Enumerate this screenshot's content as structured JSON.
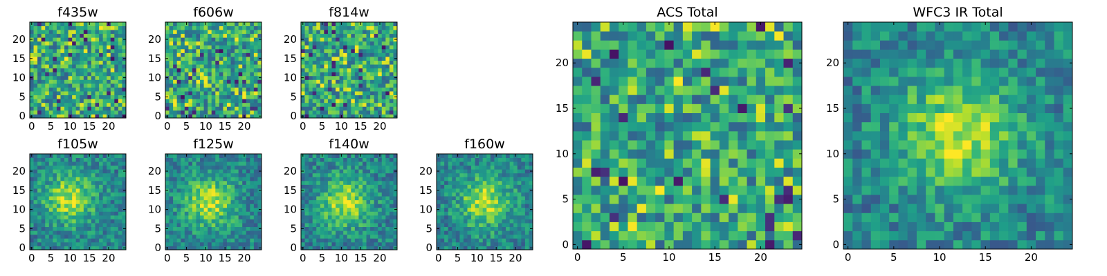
{
  "chart_data": [
    {
      "type": "heatmap",
      "title": "f435w",
      "size": 25,
      "colormap": "viridis",
      "pattern": "noise",
      "seed": 11,
      "xticks": [
        0,
        5,
        10,
        15,
        20
      ],
      "yticks": [
        0,
        5,
        10,
        15,
        20
      ],
      "xtick_labels": [
        "0",
        "5",
        "10",
        "15",
        "20"
      ],
      "ytick_labels": [
        "0",
        "5",
        "10",
        "15",
        "20"
      ]
    },
    {
      "type": "heatmap",
      "title": "f606w",
      "size": 25,
      "colormap": "viridis",
      "pattern": "noise",
      "seed": 23,
      "xticks": [
        0,
        5,
        10,
        15,
        20
      ],
      "yticks": [
        0,
        5,
        10,
        15,
        20
      ],
      "xtick_labels": [
        "0",
        "5",
        "10",
        "15",
        "20"
      ],
      "ytick_labels": [
        "0",
        "5",
        "10",
        "15",
        "20"
      ]
    },
    {
      "type": "heatmap",
      "title": "f814w",
      "size": 25,
      "colormap": "viridis",
      "pattern": "noise",
      "seed": 37,
      "xticks": [
        0,
        5,
        10,
        15,
        20
      ],
      "yticks": [
        0,
        5,
        10,
        15,
        20
      ],
      "xtick_labels": [
        "0",
        "5",
        "10",
        "15",
        "20"
      ],
      "ytick_labels": [
        "0",
        "5",
        "10",
        "15",
        "20"
      ]
    },
    {
      "type": "heatmap",
      "title": "f105w",
      "size": 25,
      "colormap": "viridis",
      "pattern": "blob",
      "seed": 41,
      "blob_center": [
        10,
        13
      ],
      "xticks": [
        0,
        5,
        10,
        15,
        20
      ],
      "yticks": [
        0,
        5,
        10,
        15,
        20
      ],
      "xtick_labels": [
        "0",
        "5",
        "10",
        "15",
        "20"
      ],
      "ytick_labels": [
        "0",
        "5",
        "10",
        "15",
        "20"
      ]
    },
    {
      "type": "heatmap",
      "title": "f125w",
      "size": 25,
      "colormap": "viridis",
      "pattern": "blob",
      "seed": 53,
      "blob_center": [
        11,
        12
      ],
      "xticks": [
        0,
        5,
        10,
        15,
        20
      ],
      "yticks": [
        0,
        5,
        10,
        15,
        20
      ],
      "xtick_labels": [
        "0",
        "5",
        "10",
        "15",
        "20"
      ],
      "ytick_labels": [
        "0",
        "5",
        "10",
        "15",
        "20"
      ]
    },
    {
      "type": "heatmap",
      "title": "f140w",
      "size": 25,
      "colormap": "viridis",
      "pattern": "blob",
      "seed": 67,
      "blob_center": [
        11,
        12
      ],
      "xticks": [
        0,
        5,
        10,
        15,
        20
      ],
      "yticks": [
        0,
        5,
        10,
        15,
        20
      ],
      "xtick_labels": [
        "0",
        "5",
        "10",
        "15",
        "20"
      ],
      "ytick_labels": [
        "0",
        "5",
        "10",
        "15",
        "20"
      ]
    },
    {
      "type": "heatmap",
      "title": "f160w",
      "size": 25,
      "colormap": "viridis",
      "pattern": "blob",
      "seed": 79,
      "blob_center": [
        12,
        12
      ],
      "xticks": [
        0,
        5,
        10,
        15,
        20
      ],
      "yticks": [
        0,
        5,
        10,
        15,
        20
      ],
      "xtick_labels": [
        "0",
        "5",
        "10",
        "15",
        "20"
      ],
      "ytick_labels": [
        "0",
        "5",
        "10",
        "15",
        "20"
      ]
    },
    {
      "type": "heatmap",
      "title": "ACS Total",
      "size": 25,
      "colormap": "viridis",
      "pattern": "noise",
      "seed": 97,
      "xticks": [
        0,
        5,
        10,
        15,
        20
      ],
      "yticks": [
        0,
        5,
        10,
        15,
        20
      ],
      "xtick_labels": [
        "0",
        "5",
        "10",
        "15",
        "20"
      ],
      "ytick_labels": [
        "0",
        "5",
        "10",
        "15",
        "20"
      ]
    },
    {
      "type": "heatmap",
      "title": "WFC3 IR Total",
      "size": 25,
      "colormap": "viridis",
      "pattern": "blob",
      "seed": 113,
      "blob_center": [
        12,
        12
      ],
      "xticks": [
        0,
        5,
        10,
        15,
        20
      ],
      "yticks": [
        0,
        5,
        10,
        15,
        20
      ],
      "xtick_labels": [
        "0",
        "5",
        "10",
        "15",
        "20"
      ],
      "ytick_labels": [
        "0",
        "5",
        "10",
        "15",
        "20"
      ]
    }
  ]
}
